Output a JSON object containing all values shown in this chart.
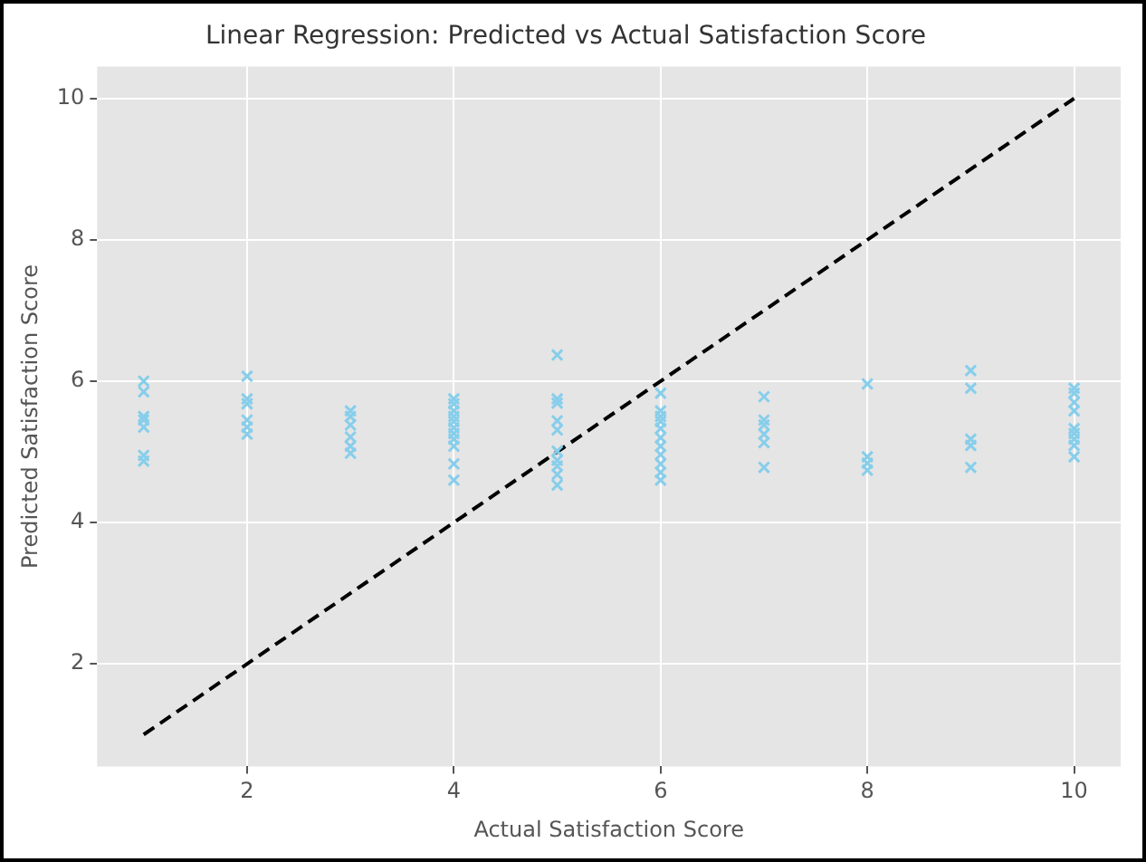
{
  "chart_data": {
    "type": "scatter",
    "title": "Linear Regression: Predicted vs Actual Satisfaction Score",
    "xlabel": "Actual Satisfaction Score",
    "ylabel": "Predicted Satisfaction Score",
    "xlim": [
      0.55,
      10.45
    ],
    "ylim": [
      0.55,
      10.45
    ],
    "xticks": [
      2,
      4,
      6,
      8,
      10
    ],
    "yticks": [
      2,
      4,
      6,
      8,
      10
    ],
    "grid": true,
    "series": [
      {
        "type": "scatter",
        "color": "#87ceeb",
        "marker": "cross",
        "x": [
          1,
          1,
          1,
          1,
          1,
          1,
          1,
          2,
          2,
          2,
          2,
          2,
          2,
          3,
          3,
          3,
          3,
          3,
          3,
          4,
          4,
          4,
          4,
          4,
          4,
          4,
          4,
          4,
          4,
          4,
          5,
          5,
          5,
          5,
          5,
          5,
          5,
          5,
          5,
          5,
          6,
          6,
          6,
          6,
          6,
          6,
          6,
          6,
          6,
          6,
          6,
          7,
          7,
          7,
          7,
          7,
          7,
          8,
          8,
          8,
          8,
          9,
          9,
          9,
          9,
          9,
          10,
          10,
          10,
          10,
          10,
          10,
          10,
          10,
          10
        ],
        "values": [
          6.0,
          5.85,
          5.5,
          5.45,
          5.35,
          4.95,
          4.87,
          6.07,
          5.75,
          5.68,
          5.45,
          5.35,
          5.25,
          5.58,
          5.5,
          5.38,
          5.21,
          5.08,
          4.98,
          5.75,
          5.68,
          5.58,
          5.5,
          5.43,
          5.34,
          5.26,
          5.18,
          5.08,
          4.83,
          4.6,
          6.37,
          5.75,
          5.69,
          5.44,
          5.31,
          5.01,
          4.88,
          4.8,
          4.68,
          4.53,
          5.83,
          5.58,
          5.5,
          5.43,
          5.33,
          5.2,
          5.08,
          4.96,
          4.83,
          4.71,
          4.6,
          5.78,
          5.45,
          5.38,
          5.25,
          5.13,
          4.78,
          5.96,
          4.93,
          4.84,
          4.74,
          6.15,
          5.9,
          5.18,
          5.09,
          4.78,
          5.9,
          5.83,
          5.7,
          5.58,
          5.33,
          5.26,
          5.18,
          5.09,
          4.93
        ]
      },
      {
        "type": "line",
        "color": "#000000",
        "line_style": "dashed",
        "marker": "none",
        "x": [
          1,
          10
        ],
        "values": [
          1,
          10
        ]
      }
    ]
  }
}
